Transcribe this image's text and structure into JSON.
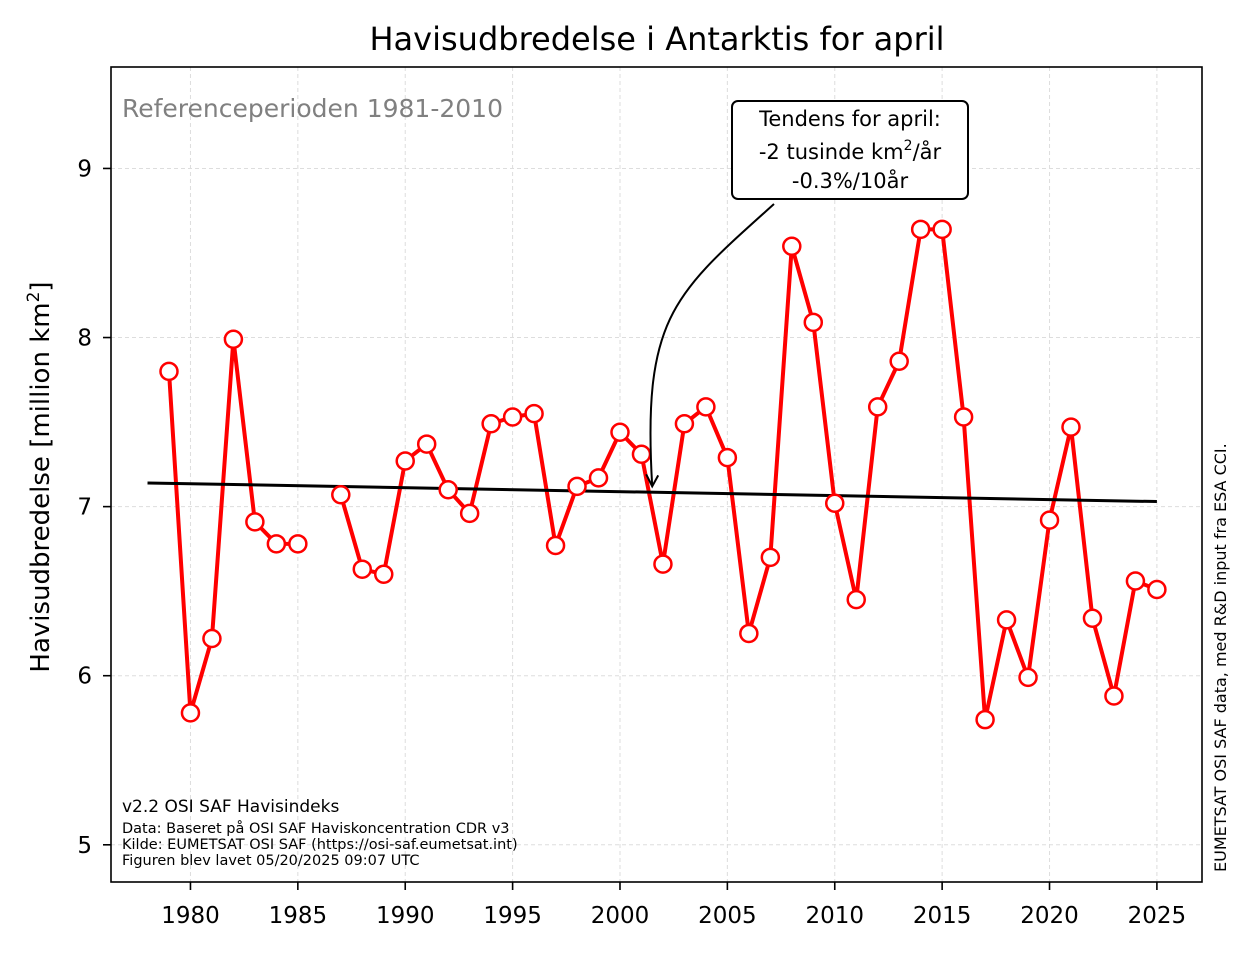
{
  "chart_data": {
    "type": "line",
    "title": "Havisudbredelse i Antarktis for april",
    "ylabel_main": "Havisudbredelse [million km",
    "ylabel_sup": "2",
    "ylabel_end": "]",
    "xlabel": "",
    "xlim": [
      1976.3,
      2027.1
    ],
    "ylim": [
      4.78,
      9.6
    ],
    "x_ticks": [
      1980,
      1985,
      1990,
      1995,
      2000,
      2005,
      2010,
      2015,
      2020,
      2025
    ],
    "x_tick_labels": [
      "1980",
      "1985",
      "1990",
      "1995",
      "2000",
      "2005",
      "2010",
      "2015",
      "2020",
      "2025"
    ],
    "y_ticks": [
      5,
      6,
      7,
      8,
      9
    ],
    "y_tick_labels": [
      "5",
      "6",
      "7",
      "8",
      "9"
    ],
    "grid": true,
    "series": [
      {
        "color": "#ff0000",
        "marker": "open-circle",
        "points": [
          [
            1979,
            7.8
          ],
          [
            1980,
            5.78
          ],
          [
            1981,
            6.22
          ],
          [
            1982,
            7.99
          ],
          [
            1983,
            6.91
          ],
          [
            1984,
            6.78
          ],
          [
            1985,
            6.78
          ],
          [
            1986,
            null
          ],
          [
            1987,
            7.07
          ],
          [
            1988,
            6.63
          ],
          [
            1989,
            6.6
          ],
          [
            1990,
            7.27
          ],
          [
            1991,
            7.37
          ],
          [
            1992,
            7.1
          ],
          [
            1993,
            6.96
          ],
          [
            1994,
            7.49
          ],
          [
            1995,
            7.53
          ],
          [
            1996,
            7.55
          ],
          [
            1997,
            6.77
          ],
          [
            1998,
            7.12
          ],
          [
            1999,
            7.17
          ],
          [
            2000,
            7.44
          ],
          [
            2001,
            7.31
          ],
          [
            2002,
            6.66
          ],
          [
            2003,
            7.49
          ],
          [
            2004,
            7.59
          ],
          [
            2005,
            7.29
          ],
          [
            2006,
            6.25
          ],
          [
            2007,
            6.7
          ],
          [
            2008,
            8.54
          ],
          [
            2009,
            8.09
          ],
          [
            2010,
            7.02
          ],
          [
            2011,
            6.45
          ],
          [
            2012,
            7.59
          ],
          [
            2013,
            7.86
          ],
          [
            2014,
            8.64
          ],
          [
            2015,
            8.64
          ],
          [
            2016,
            7.53
          ],
          [
            2017,
            5.74
          ],
          [
            2018,
            6.33
          ],
          [
            2019,
            5.99
          ],
          [
            2020,
            6.92
          ],
          [
            2021,
            7.47
          ],
          [
            2022,
            6.34
          ],
          [
            2023,
            5.88
          ],
          [
            2024,
            6.56
          ],
          [
            2025,
            6.51
          ]
        ]
      },
      {
        "color": "#000000",
        "points": [
          [
            1978,
            7.14
          ],
          [
            2025,
            7.03
          ]
        ]
      }
    ],
    "reference_text": "Referenceperioden 1981-2010",
    "annotation": {
      "line1": "Tendens for april:",
      "line2_main": "-2 tusinde km",
      "line2_sup": "2",
      "line2_end": "/år",
      "line3": "-0.3%/10år",
      "arrow_target": [
        2001.5,
        7.12
      ]
    },
    "footer_title": "v2.2 OSI SAF Havisindeks",
    "footer_lines": [
      "Data: Baseret på OSI SAF Haviskoncentration CDR v3",
      "Kilde: EUMETSAT OSI SAF (https://osi-saf.eumetsat.int)",
      "Figuren blev lavet 05/20/2025 09:07 UTC"
    ],
    "side_text": "EUMETSAT OSI SAF data, med R&D input fra ESA CCI."
  }
}
